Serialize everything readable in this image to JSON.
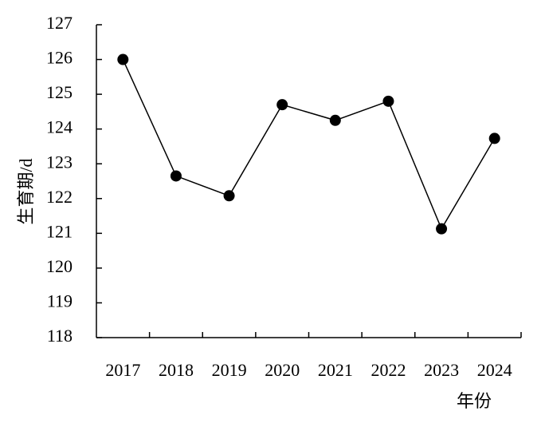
{
  "chart_data": {
    "type": "line",
    "x_label": "年份",
    "y_label": "生育期/d",
    "categories": [
      "2017",
      "2018",
      "2019",
      "2020",
      "2021",
      "2022",
      "2023",
      "2024"
    ],
    "series": [
      {
        "name": "生育期",
        "color": "#000000",
        "values": [
          126,
          122.65,
          122.08,
          124.7,
          124.25,
          124.8,
          121.13,
          123.73
        ]
      }
    ],
    "ylim": [
      118,
      127
    ],
    "yticks": [
      118,
      119,
      120,
      121,
      122,
      123,
      124,
      125,
      126,
      127
    ],
    "grid": false,
    "legend": false
  }
}
